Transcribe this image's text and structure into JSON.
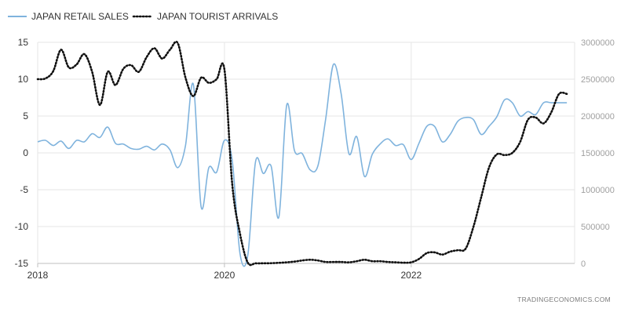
{
  "chart_data": {
    "type": "line",
    "source": "TRADINGECONOMICS.COM",
    "colors": {
      "retail": "#7fb3dd",
      "tourist": "#111111",
      "grid": "#e6e6e6",
      "axis": "#bfbfbf"
    },
    "legend": [
      {
        "name": "JAPAN RETAIL SALES",
        "style": "solid",
        "color": "#7fb3dd"
      },
      {
        "name": "JAPAN TOURIST ARRIVALS",
        "style": "dotted",
        "color": "#111111"
      }
    ],
    "x_ticks": [
      "2018",
      "2020",
      "2022"
    ],
    "x_tick_values": [
      2018,
      2020,
      2022
    ],
    "xlim": [
      2018,
      2023.75
    ],
    "y_left": {
      "ticks": [
        "15",
        "10",
        "5",
        "0",
        "-5",
        "-10",
        "-15"
      ],
      "tick_values": [
        15,
        10,
        5,
        0,
        -5,
        -10,
        -15
      ],
      "lim": [
        -15,
        15
      ]
    },
    "y_right": {
      "ticks": [
        "3000000",
        "2500000",
        "2000000",
        "1500000",
        "1000000",
        "500000",
        "0"
      ],
      "tick_values": [
        3000000,
        2500000,
        2000000,
        1500000,
        1000000,
        500000,
        0
      ],
      "lim": [
        0,
        3000000
      ]
    },
    "grid": true,
    "legend_position": "top-left",
    "series": [
      {
        "name": "JAPAN RETAIL SALES",
        "axis": "left",
        "x": [
          2018.0,
          2018.083,
          2018.167,
          2018.25,
          2018.333,
          2018.417,
          2018.5,
          2018.583,
          2018.667,
          2018.75,
          2018.833,
          2018.917,
          2019.0,
          2019.083,
          2019.167,
          2019.25,
          2019.333,
          2019.417,
          2019.5,
          2019.583,
          2019.667,
          2019.75,
          2019.833,
          2019.917,
          2020.0,
          2020.083,
          2020.167,
          2020.25,
          2020.333,
          2020.417,
          2020.5,
          2020.583,
          2020.667,
          2020.75,
          2020.833,
          2020.917,
          2021.0,
          2021.083,
          2021.167,
          2021.25,
          2021.333,
          2021.417,
          2021.5,
          2021.583,
          2021.667,
          2021.75,
          2021.833,
          2021.917,
          2022.0,
          2022.083,
          2022.167,
          2022.25,
          2022.333,
          2022.417,
          2022.5,
          2022.583,
          2022.667,
          2022.75,
          2022.833,
          2022.917,
          2023.0,
          2023.083,
          2023.167,
          2023.25,
          2023.333,
          2023.417,
          2023.5,
          2023.583,
          2023.667
        ],
        "values": [
          1.5,
          1.7,
          1.0,
          1.6,
          0.6,
          1.7,
          1.5,
          2.6,
          2.1,
          3.5,
          1.3,
          1.2,
          0.6,
          0.5,
          0.9,
          0.4,
          1.2,
          0.4,
          -2.0,
          1.0,
          9.3,
          -7.3,
          -2.0,
          -2.6,
          1.7,
          -1.0,
          -13.7,
          -13.9,
          -1.2,
          -2.8,
          -1.8,
          -8.7,
          6.5,
          0.3,
          -0.1,
          -2.3,
          -1.8,
          4.5,
          12.0,
          8.0,
          -0.1,
          2.2,
          -3.2,
          -0.2,
          1.2,
          1.9,
          1.0,
          1.1,
          -0.9,
          1.3,
          3.6,
          3.6,
          1.5,
          2.5,
          4.3,
          4.8,
          4.5,
          2.5,
          3.6,
          4.9,
          7.2,
          6.8,
          5.0,
          5.6,
          5.2,
          6.8,
          6.8,
          6.8,
          6.8
        ]
      },
      {
        "name": "JAPAN TOURIST ARRIVALS",
        "axis": "right",
        "x": [
          2018.0,
          2018.083,
          2018.167,
          2018.25,
          2018.333,
          2018.417,
          2018.5,
          2018.583,
          2018.667,
          2018.75,
          2018.833,
          2018.917,
          2019.0,
          2019.083,
          2019.167,
          2019.25,
          2019.333,
          2019.417,
          2019.5,
          2019.583,
          2019.667,
          2019.75,
          2019.833,
          2019.917,
          2020.0,
          2020.083,
          2020.167,
          2020.25,
          2020.333,
          2020.417,
          2020.5,
          2020.583,
          2020.667,
          2020.75,
          2020.833,
          2020.917,
          2021.0,
          2021.083,
          2021.167,
          2021.25,
          2021.333,
          2021.417,
          2021.5,
          2021.583,
          2021.667,
          2021.75,
          2021.833,
          2021.917,
          2022.0,
          2022.083,
          2022.167,
          2022.25,
          2022.333,
          2022.417,
          2022.5,
          2022.583,
          2022.667,
          2022.75,
          2022.833,
          2022.917,
          2023.0,
          2023.083,
          2023.167,
          2023.25,
          2023.333,
          2023.417,
          2023.5,
          2023.583,
          2023.667
        ],
        "values": [
          2500000,
          2510000,
          2610000,
          2900000,
          2660000,
          2700000,
          2840000,
          2600000,
          2150000,
          2600000,
          2420000,
          2640000,
          2690000,
          2600000,
          2800000,
          2920000,
          2780000,
          2900000,
          2990000,
          2520000,
          2270000,
          2520000,
          2450000,
          2500000,
          2630000,
          1080000,
          400000,
          10000,
          1500,
          2000,
          3000,
          8000,
          15000,
          25000,
          40000,
          50000,
          40000,
          20000,
          20000,
          20000,
          15000,
          30000,
          50000,
          30000,
          30000,
          20000,
          15000,
          10000,
          15000,
          60000,
          140000,
          150000,
          120000,
          160000,
          180000,
          200000,
          500000,
          900000,
          1300000,
          1480000,
          1470000,
          1500000,
          1650000,
          1950000,
          1980000,
          1900000,
          2050000,
          2300000,
          2300000
        ]
      }
    ]
  }
}
